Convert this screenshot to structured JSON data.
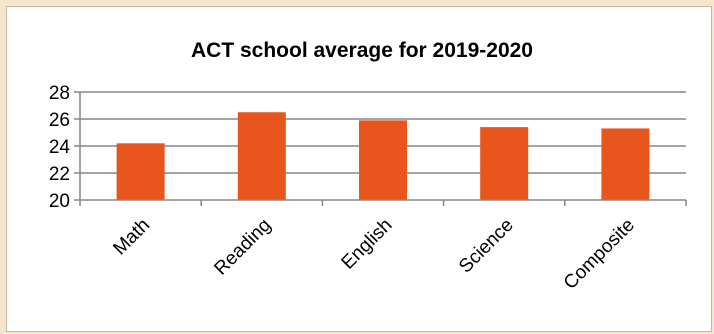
{
  "colors": {
    "bar": "#e8561d",
    "grid": "#868686",
    "page_background": "#f5e6d0"
  },
  "chart_data": {
    "type": "bar",
    "title": "ACT school average for 2019-2020",
    "categories": [
      "Math",
      "Reading",
      "English",
      "Science",
      "Composite"
    ],
    "values": [
      24.2,
      26.5,
      25.9,
      25.4,
      25.3
    ],
    "ylim": [
      20,
      28
    ],
    "yticks": [
      20,
      22,
      24,
      26,
      28
    ],
    "ytick_labels": [
      "20",
      "22",
      "24",
      "26",
      "28"
    ],
    "grid": true,
    "legend": "none"
  }
}
